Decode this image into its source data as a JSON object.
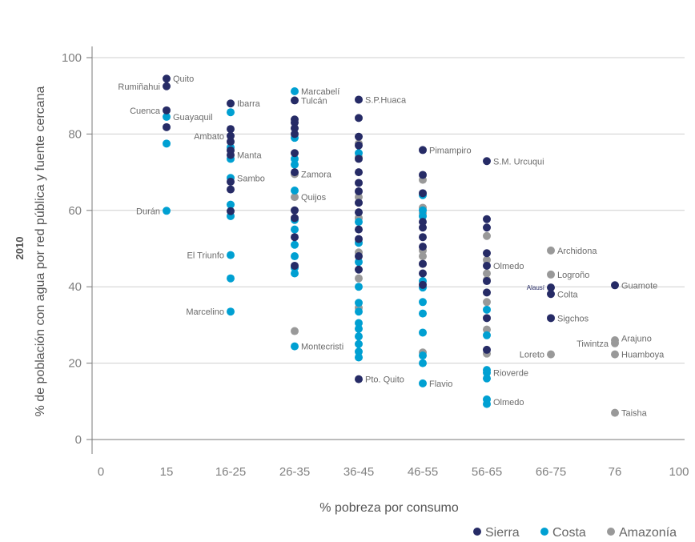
{
  "chart_data": {
    "type": "scatter",
    "xlabel": "% pobreza por consumo",
    "ylabel_line1": "2010",
    "ylabel_line2": "% de población con agua por red pública y fuente cercana",
    "x_tick_labels": [
      "0",
      "15",
      "16-25",
      "26-35",
      "36-45",
      "46-55",
      "56-65",
      "66-75",
      "76",
      "100"
    ],
    "y_ticks": [
      0,
      20,
      40,
      60,
      80,
      100
    ],
    "ylim": [
      0,
      100
    ],
    "grid": "horizontal",
    "legend_position": "bottom-right",
    "colors": {
      "Sierra": "#262b66",
      "Costa": "#00a0d2",
      "Amazonía": "#999999"
    },
    "series": [
      {
        "name": "Sierra",
        "points": [
          [
            "15",
            94.5
          ],
          [
            "15",
            92.5
          ],
          [
            "15",
            86.2
          ],
          [
            "15",
            81.8
          ],
          [
            "16-25",
            88
          ],
          [
            "16-25",
            81.3
          ],
          [
            "16-25",
            79.5
          ],
          [
            "16-25",
            78
          ],
          [
            "16-25",
            75.7
          ],
          [
            "16-25",
            74.5
          ],
          [
            "16-25",
            67.5
          ],
          [
            "16-25",
            65.5
          ],
          [
            "16-25",
            59.8
          ],
          [
            "26-35",
            88.8
          ],
          [
            "26-35",
            83.8
          ],
          [
            "26-35",
            83
          ],
          [
            "26-35",
            81.5
          ],
          [
            "26-35",
            80
          ],
          [
            "26-35",
            75
          ],
          [
            "26-35",
            70
          ],
          [
            "26-35",
            60
          ],
          [
            "26-35",
            58
          ],
          [
            "26-35",
            53
          ],
          [
            "26-35",
            45.5
          ],
          [
            "36-45",
            89
          ],
          [
            "36-45",
            84.2
          ],
          [
            "36-45",
            79.3
          ],
          [
            "36-45",
            77
          ],
          [
            "36-45",
            73.5
          ],
          [
            "36-45",
            70
          ],
          [
            "36-45",
            67.2
          ],
          [
            "36-45",
            65
          ],
          [
            "36-45",
            62
          ],
          [
            "36-45",
            59.5
          ],
          [
            "36-45",
            55
          ],
          [
            "36-45",
            52.5
          ],
          [
            "36-45",
            48
          ],
          [
            "36-45",
            44.5
          ],
          [
            "36-45",
            15.8
          ],
          [
            "46-55",
            75.8
          ],
          [
            "46-55",
            69.3
          ],
          [
            "46-55",
            64.5
          ],
          [
            "46-55",
            57
          ],
          [
            "46-55",
            55.5
          ],
          [
            "46-55",
            53
          ],
          [
            "46-55",
            50.5
          ],
          [
            "46-55",
            46
          ],
          [
            "46-55",
            43.5
          ],
          [
            "46-55",
            40.5
          ],
          [
            "56-65",
            72.9
          ],
          [
            "56-65",
            57.7
          ],
          [
            "56-65",
            55.5
          ],
          [
            "56-65",
            48.8
          ],
          [
            "56-65",
            45.5
          ],
          [
            "56-65",
            41.5
          ],
          [
            "56-65",
            38.5
          ],
          [
            "56-65",
            31.8
          ],
          [
            "56-65",
            23.5
          ],
          [
            "66-75",
            39.8
          ],
          [
            "66-75",
            38.1
          ],
          [
            "66-75",
            31.8
          ],
          [
            "76",
            40.4
          ]
        ]
      },
      {
        "name": "Costa",
        "points": [
          [
            "15",
            84.5
          ],
          [
            "15",
            77.5
          ],
          [
            "15",
            59.9
          ],
          [
            "16-25",
            85.7
          ],
          [
            "16-25",
            76.5
          ],
          [
            "16-25",
            73.5
          ],
          [
            "16-25",
            68.5
          ],
          [
            "16-25",
            61.5
          ],
          [
            "16-25",
            58.5
          ],
          [
            "16-25",
            48.3
          ],
          [
            "16-25",
            42.2
          ],
          [
            "16-25",
            33.5
          ],
          [
            "26-35",
            91.2
          ],
          [
            "26-35",
            79
          ],
          [
            "26-35",
            73.5
          ],
          [
            "26-35",
            72
          ],
          [
            "26-35",
            65.2
          ],
          [
            "26-35",
            57.5
          ],
          [
            "26-35",
            55
          ],
          [
            "26-35",
            51
          ],
          [
            "26-35",
            48
          ],
          [
            "26-35",
            45
          ],
          [
            "26-35",
            43.5
          ],
          [
            "26-35",
            24.4
          ],
          [
            "36-45",
            75
          ],
          [
            "36-45",
            57
          ],
          [
            "36-45",
            51.5
          ],
          [
            "36-45",
            46.5
          ],
          [
            "36-45",
            40
          ],
          [
            "36-45",
            35.8
          ],
          [
            "36-45",
            33.5
          ],
          [
            "36-45",
            30.5
          ],
          [
            "36-45",
            29
          ],
          [
            "36-45",
            27
          ],
          [
            "36-45",
            25
          ],
          [
            "36-45",
            23
          ],
          [
            "36-45",
            21.5
          ],
          [
            "46-55",
            64
          ],
          [
            "46-55",
            60
          ],
          [
            "46-55",
            58.5
          ],
          [
            "46-55",
            41.5
          ],
          [
            "46-55",
            39.8
          ],
          [
            "46-55",
            36
          ],
          [
            "46-55",
            33
          ],
          [
            "46-55",
            28
          ],
          [
            "46-55",
            22
          ],
          [
            "46-55",
            20
          ],
          [
            "46-55",
            14.7
          ],
          [
            "56-65",
            34
          ],
          [
            "56-65",
            27.3
          ],
          [
            "56-65",
            18.2
          ],
          [
            "56-65",
            17.5
          ],
          [
            "56-65",
            16
          ],
          [
            "56-65",
            10.5
          ],
          [
            "56-65",
            9.3
          ]
        ]
      },
      {
        "name": "Amazonía",
        "points": [
          [
            "26-35",
            69.5
          ],
          [
            "26-35",
            63.5
          ],
          [
            "26-35",
            28.4
          ],
          [
            "36-45",
            77.5
          ],
          [
            "36-45",
            74
          ],
          [
            "36-45",
            63.5
          ],
          [
            "36-45",
            58
          ],
          [
            "36-45",
            49
          ],
          [
            "36-45",
            42.2
          ],
          [
            "36-45",
            34.5
          ],
          [
            "46-55",
            68
          ],
          [
            "46-55",
            60.7
          ],
          [
            "46-55",
            59.3
          ],
          [
            "46-55",
            49.5
          ],
          [
            "46-55",
            48
          ],
          [
            "46-55",
            46
          ],
          [
            "46-55",
            22.8
          ],
          [
            "56-65",
            53.3
          ],
          [
            "56-65",
            47
          ],
          [
            "56-65",
            43.5
          ],
          [
            "56-65",
            41.8
          ],
          [
            "56-65",
            36
          ],
          [
            "56-65",
            28.8
          ],
          [
            "56-65",
            22.5
          ],
          [
            "66-75",
            49.5
          ],
          [
            "66-75",
            43.2
          ],
          [
            "66-75",
            22.3
          ],
          [
            "76",
            26
          ],
          [
            "76",
            25.2
          ],
          [
            "76",
            22.3
          ],
          [
            "76",
            7
          ]
        ]
      }
    ],
    "annotations": [
      {
        "text": "Quito",
        "x": "15",
        "y": 94.5,
        "side": "right"
      },
      {
        "text": "Rumiñahui",
        "x": "15",
        "y": 92.5,
        "side": "left"
      },
      {
        "text": "Cuenca",
        "x": "15",
        "y": 86.2,
        "side": "left"
      },
      {
        "text": "Guayaquil",
        "x": "15",
        "y": 84.5,
        "side": "right"
      },
      {
        "text": "Durán",
        "x": "15",
        "y": 59.9,
        "side": "left"
      },
      {
        "text": "Ibarra",
        "x": "16-25",
        "y": 88,
        "side": "right"
      },
      {
        "text": "Ambato",
        "x": "16-25",
        "y": 79.5,
        "side": "left"
      },
      {
        "text": "Manta",
        "x": "16-25",
        "y": 74.5,
        "side": "right"
      },
      {
        "text": "Sambo",
        "x": "16-25",
        "y": 68.5,
        "side": "right"
      },
      {
        "text": "El Triunfo",
        "x": "16-25",
        "y": 48.3,
        "side": "left"
      },
      {
        "text": "Marcelino",
        "x": "16-25",
        "y": 33.5,
        "side": "left"
      },
      {
        "text": "Marcabelí",
        "x": "26-35",
        "y": 91.2,
        "side": "right"
      },
      {
        "text": "Tulcán",
        "x": "26-35",
        "y": 88.8,
        "side": "right"
      },
      {
        "text": "Zamora",
        "x": "26-35",
        "y": 69.5,
        "side": "right"
      },
      {
        "text": "Quijos",
        "x": "26-35",
        "y": 63.5,
        "side": "right"
      },
      {
        "text": "Montecristi",
        "x": "26-35",
        "y": 24.4,
        "side": "right"
      },
      {
        "text": "S.P.Huaca",
        "x": "36-45",
        "y": 89,
        "side": "right"
      },
      {
        "text": "Pto. Quito",
        "x": "36-45",
        "y": 15.8,
        "side": "right"
      },
      {
        "text": "Pimampiro",
        "x": "46-55",
        "y": 75.8,
        "side": "right"
      },
      {
        "text": "Flavio",
        "x": "46-55",
        "y": 14.7,
        "side": "right"
      },
      {
        "text": "S.M. Urcuqui",
        "x": "56-65",
        "y": 72.9,
        "side": "right"
      },
      {
        "text": "Olmedo",
        "x": "56-65",
        "y": 45.5,
        "side": "right"
      },
      {
        "text": "Rioverde",
        "x": "56-65",
        "y": 17.5,
        "side": "right"
      },
      {
        "text": "Olmedo",
        "x": "56-65",
        "y": 9.9,
        "side": "right"
      },
      {
        "text": "Archidona",
        "x": "66-75",
        "y": 49.5,
        "side": "right"
      },
      {
        "text": "Logroño",
        "x": "66-75",
        "y": 43.2,
        "side": "right"
      },
      {
        "text": "Alausí",
        "x": "66-75",
        "y": 40,
        "side": "left",
        "small": true
      },
      {
        "text": "Colta",
        "x": "66-75",
        "y": 38.1,
        "side": "right"
      },
      {
        "text": "Sigchos",
        "x": "66-75",
        "y": 31.8,
        "side": "right"
      },
      {
        "text": "Loreto",
        "x": "66-75",
        "y": 22.3,
        "side": "left"
      },
      {
        "text": "Guamote",
        "x": "76",
        "y": 40.4,
        "side": "right"
      },
      {
        "text": "Arajuno",
        "x": "76",
        "y": 26.5,
        "side": "right"
      },
      {
        "text": "Tiwintza",
        "x": "76",
        "y": 25.2,
        "side": "left"
      },
      {
        "text": "Huamboya",
        "x": "76",
        "y": 22.3,
        "side": "right"
      },
      {
        "text": "Taisha",
        "x": "76",
        "y": 7,
        "side": "right"
      }
    ]
  }
}
